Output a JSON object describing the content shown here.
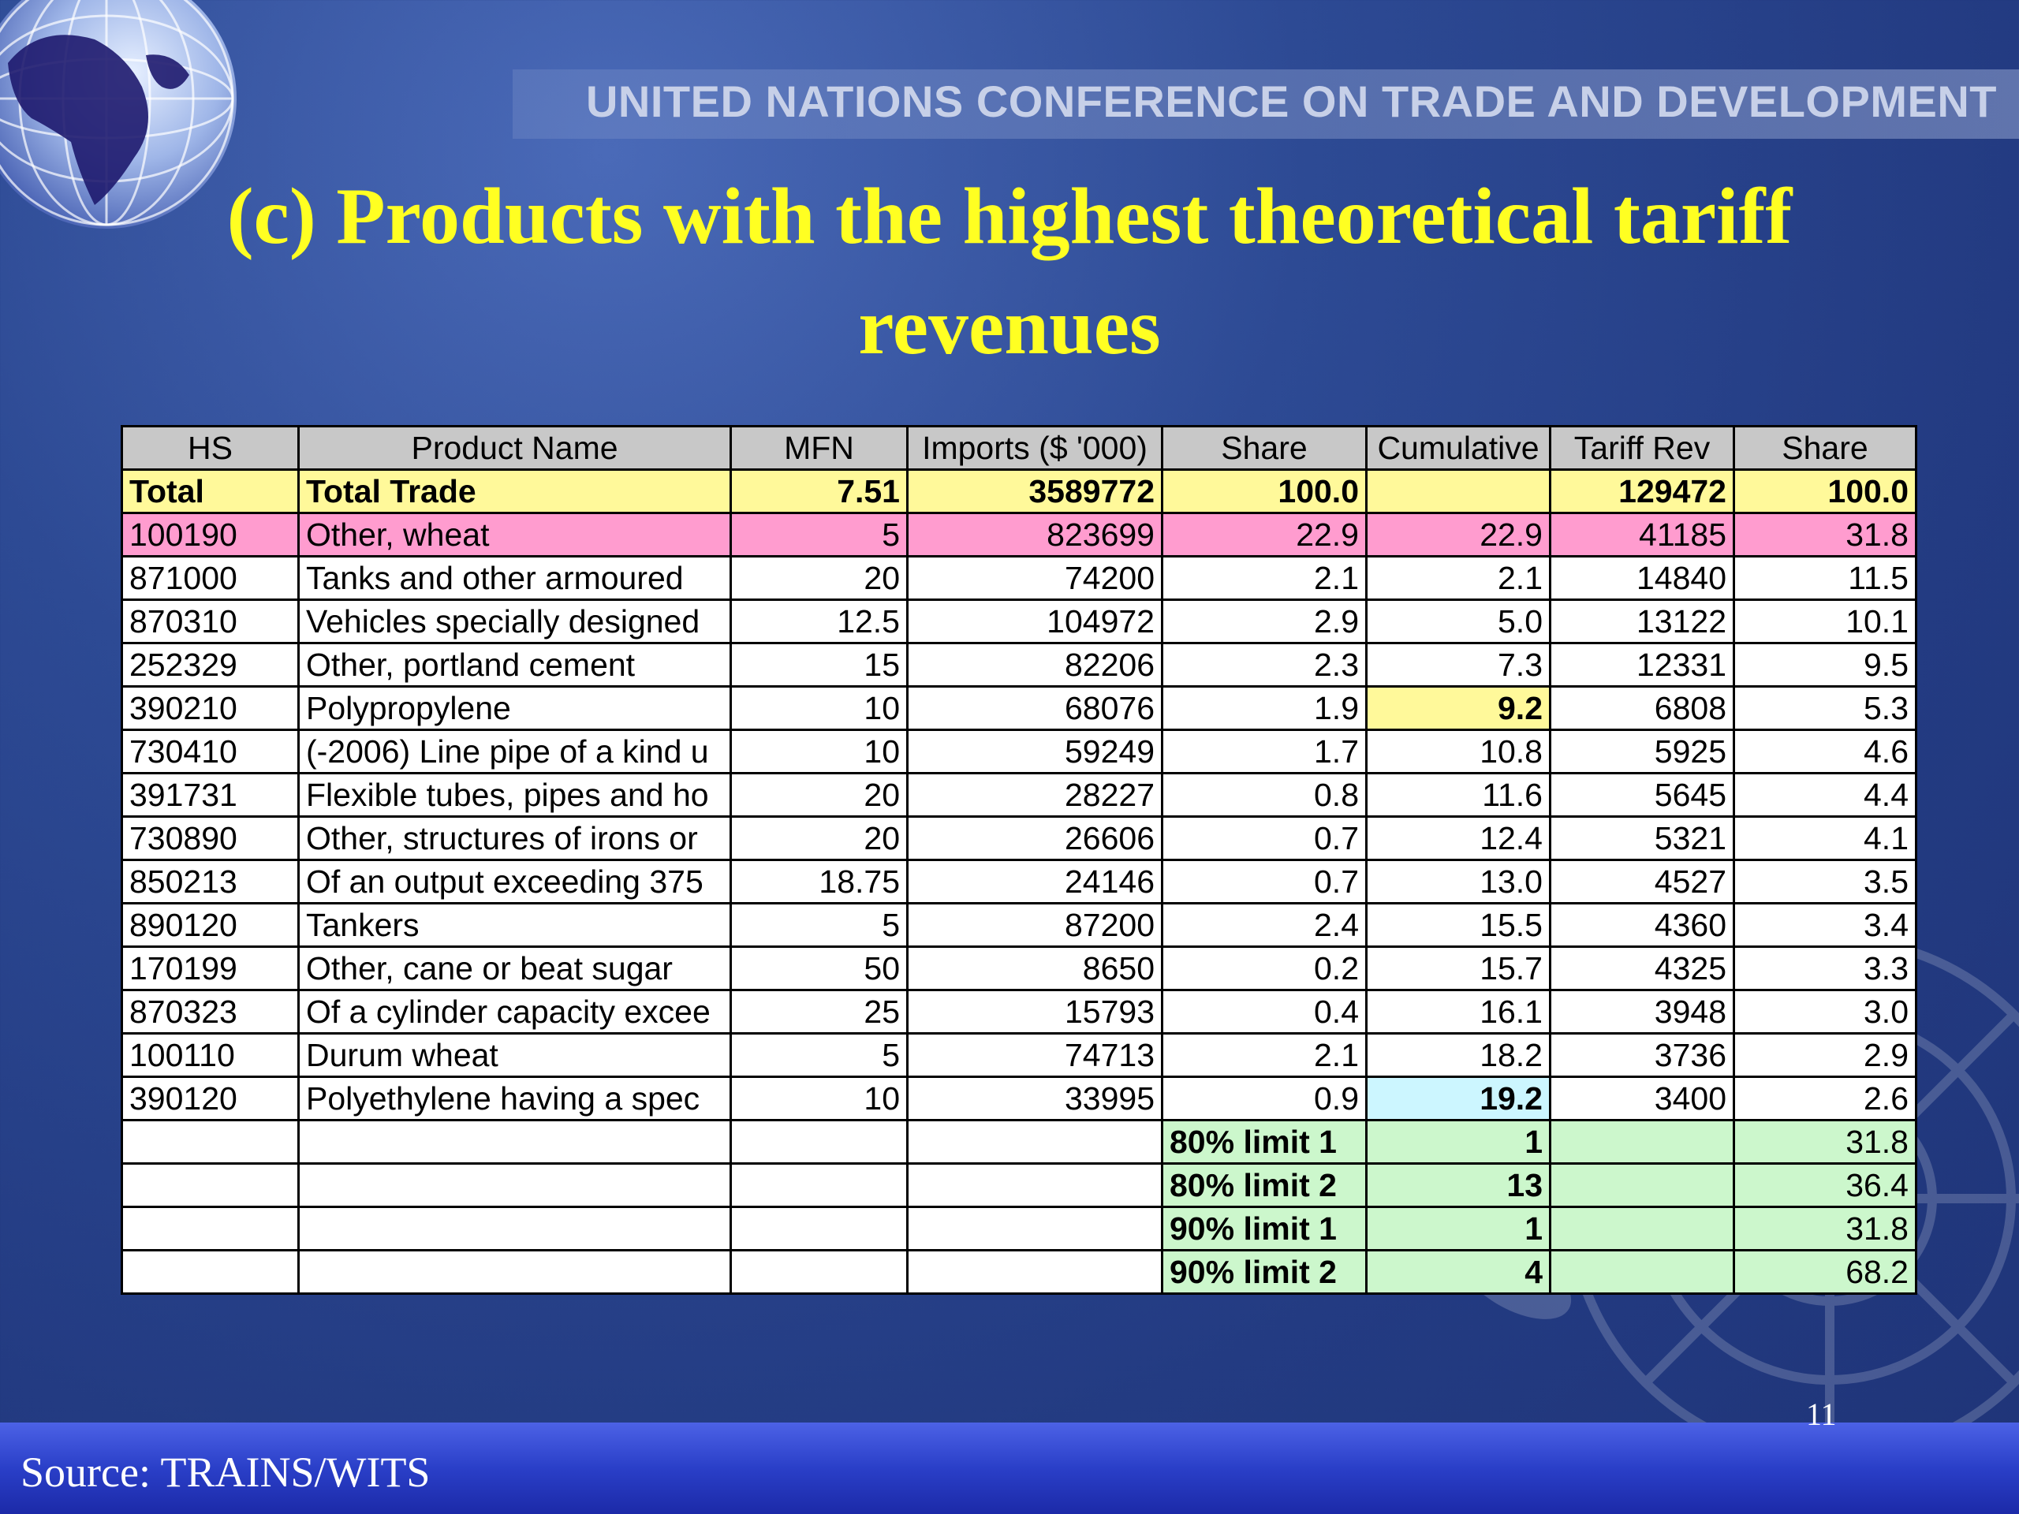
{
  "header": {
    "org_name": "UNITED NATIONS CONFERENCE ON TRADE AND DEVELOPMENT",
    "title_line1": "(c) Products with the highest theoretical tariff",
    "title_line2": "revenues"
  },
  "table": {
    "headers": [
      "HS",
      "Product Name",
      "MFN",
      "Imports ($ '000)",
      "Share",
      "Cumulative",
      "Tariff Rev",
      "Share"
    ],
    "total": {
      "hs": "Total",
      "name": "Total Trade",
      "mfn": "7.51",
      "imports": "3589772",
      "share": "100.0",
      "cumulative": "",
      "tariff_rev": "129472",
      "share2": "100.0"
    },
    "rows": [
      {
        "hs": "100190",
        "name": "Other, wheat",
        "mfn": "5",
        "imports": "823699",
        "share": "22.9",
        "cumulative": "22.9",
        "tariff_rev": "41185",
        "share2": "31.8"
      },
      {
        "hs": "871000",
        "name": "Tanks and other armoured",
        "mfn": "20",
        "imports": "74200",
        "share": "2.1",
        "cumulative": "2.1",
        "tariff_rev": "14840",
        "share2": "11.5"
      },
      {
        "hs": "870310",
        "name": "Vehicles specially designed",
        "mfn": "12.5",
        "imports": "104972",
        "share": "2.9",
        "cumulative": "5.0",
        "tariff_rev": "13122",
        "share2": "10.1"
      },
      {
        "hs": "252329",
        "name": "Other, portland cement",
        "mfn": "15",
        "imports": "82206",
        "share": "2.3",
        "cumulative": "7.3",
        "tariff_rev": "12331",
        "share2": "9.5"
      },
      {
        "hs": "390210",
        "name": "Polypropylene",
        "mfn": "10",
        "imports": "68076",
        "share": "1.9",
        "cumulative": "9.2",
        "tariff_rev": "6808",
        "share2": "5.3"
      },
      {
        "hs": "730410",
        "name": "(-2006) Line pipe of a kind u",
        "mfn": "10",
        "imports": "59249",
        "share": "1.7",
        "cumulative": "10.8",
        "tariff_rev": "5925",
        "share2": "4.6"
      },
      {
        "hs": "391731",
        "name": "Flexible tubes, pipes and ho",
        "mfn": "20",
        "imports": "28227",
        "share": "0.8",
        "cumulative": "11.6",
        "tariff_rev": "5645",
        "share2": "4.4"
      },
      {
        "hs": "730890",
        "name": "Other, structures of irons or",
        "mfn": "20",
        "imports": "26606",
        "share": "0.7",
        "cumulative": "12.4",
        "tariff_rev": "5321",
        "share2": "4.1"
      },
      {
        "hs": "850213",
        "name": "Of an output exceeding 375",
        "mfn": "18.75",
        "imports": "24146",
        "share": "0.7",
        "cumulative": "13.0",
        "tariff_rev": "4527",
        "share2": "3.5"
      },
      {
        "hs": "890120",
        "name": "Tankers",
        "mfn": "5",
        "imports": "87200",
        "share": "2.4",
        "cumulative": "15.5",
        "tariff_rev": "4360",
        "share2": "3.4"
      },
      {
        "hs": "170199",
        "name": "Other, cane or beat sugar",
        "mfn": "50",
        "imports": "8650",
        "share": "0.2",
        "cumulative": "15.7",
        "tariff_rev": "4325",
        "share2": "3.3"
      },
      {
        "hs": "870323",
        "name": "Of a cylinder capacity excee",
        "mfn": "25",
        "imports": "15793",
        "share": "0.4",
        "cumulative": "16.1",
        "tariff_rev": "3948",
        "share2": "3.0"
      },
      {
        "hs": "100110",
        "name": "Durum wheat",
        "mfn": "5",
        "imports": "74713",
        "share": "2.1",
        "cumulative": "18.2",
        "tariff_rev": "3736",
        "share2": "2.9"
      },
      {
        "hs": "390120",
        "name": "Polyethylene having a spec",
        "mfn": "10",
        "imports": "33995",
        "share": "0.9",
        "cumulative": "19.2",
        "tariff_rev": "3400",
        "share2": "2.6"
      }
    ],
    "limits": [
      {
        "label": "80% limit 1",
        "count": "1",
        "share": "31.8"
      },
      {
        "label": "80% limit 2",
        "count": "13",
        "share": "36.4"
      },
      {
        "label": "90% limit 1",
        "count": "1",
        "share": "31.8"
      },
      {
        "label": "90% limit 2",
        "count": "4",
        "share": "68.2"
      }
    ]
  },
  "footer": {
    "source": "Source: TRAINS/WITS",
    "page_number": "11"
  }
}
